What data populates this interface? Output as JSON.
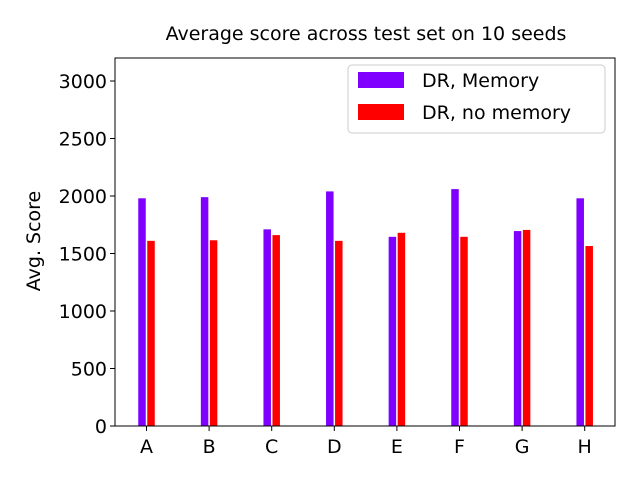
{
  "chart_data": {
    "type": "bar",
    "title": "Average score across test set on 10 seeds",
    "xlabel": "",
    "ylabel": "Avg. Score",
    "categories": [
      "A",
      "B",
      "C",
      "D",
      "E",
      "F",
      "G",
      "H"
    ],
    "series": [
      {
        "name": "DR, Memory",
        "color": "#7f00ff",
        "values": [
          1980,
          1990,
          1710,
          2040,
          1645,
          2060,
          1695,
          1980
        ]
      },
      {
        "name": "DR, no memory",
        "color": "#ff0000",
        "values": [
          1610,
          1615,
          1660,
          1610,
          1680,
          1645,
          1705,
          1565
        ]
      }
    ],
    "ylim": [
      0,
      3200
    ],
    "yticks": [
      0,
      500,
      1000,
      1500,
      2000,
      2500,
      3000
    ],
    "grid": false,
    "legend_position": "top-right"
  }
}
